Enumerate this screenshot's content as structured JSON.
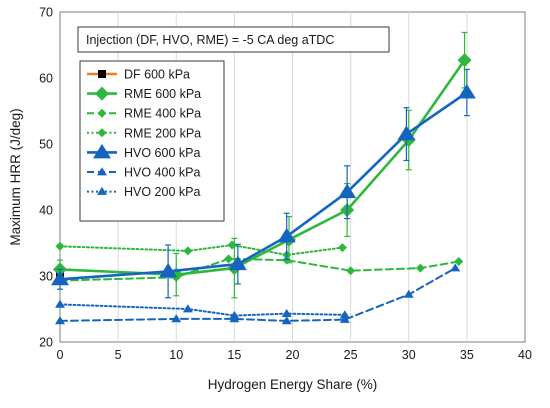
{
  "chart_data": {
    "type": "line",
    "title": "",
    "xlabel": "Hydrogen Energy Share (%)",
    "ylabel": "Maximum HRR  (J/deg)",
    "xlim": [
      0,
      40
    ],
    "ylim": [
      20,
      70
    ],
    "xticks": [
      0,
      5,
      10,
      15,
      20,
      25,
      30,
      35,
      40
    ],
    "yticks": [
      20,
      30,
      40,
      50,
      60,
      70
    ],
    "grid": "vertical",
    "legend_position": "upper-left",
    "annotation": "Injection (DF, HVO, RME) = -5 CA deg aTDC",
    "series": [
      {
        "name": "DF    600 kPa",
        "color": "#f07c1e",
        "line_style": "solid",
        "marker": "square",
        "marker_color": "#000000",
        "points": [
          {
            "x": 0,
            "y": 30.2,
            "err": 0.7
          }
        ]
      },
      {
        "name": "RME 600 kPa",
        "color": "#2db83d",
        "line_style": "solid",
        "marker": "diamond-large",
        "points": [
          {
            "x": 0,
            "y": 31.0,
            "err": 1.4
          },
          {
            "x": 10,
            "y": 30.2,
            "err": 3.2
          },
          {
            "x": 15,
            "y": 31.2,
            "err": 4.5
          },
          {
            "x": 19.7,
            "y": 35.5,
            "err": 3.5
          },
          {
            "x": 24.7,
            "y": 40.0,
            "err": 4.0
          },
          {
            "x": 30,
            "y": 50.6,
            "err": 4.5
          },
          {
            "x": 34.8,
            "y": 62.7,
            "err": 4.2
          }
        ]
      },
      {
        "name": "RME 400 kPa",
        "color": "#2db83d",
        "line_style": "dashed",
        "marker": "diamond-small",
        "points": [
          {
            "x": 0,
            "y": 29.3,
            "err": 0
          },
          {
            "x": 10,
            "y": 29.8,
            "err": 0
          },
          {
            "x": 14.5,
            "y": 32.6,
            "err": 0
          },
          {
            "x": 19.5,
            "y": 32.4,
            "err": 0
          },
          {
            "x": 25,
            "y": 30.8,
            "err": 0
          },
          {
            "x": 31,
            "y": 31.2,
            "err": 0
          },
          {
            "x": 34.3,
            "y": 32.2,
            "err": 0
          }
        ]
      },
      {
        "name": "RME 200 kPa",
        "color": "#2db83d",
        "line_style": "dotted",
        "marker": "diamond-small",
        "points": [
          {
            "x": 0,
            "y": 34.5,
            "err": 0
          },
          {
            "x": 11,
            "y": 33.8,
            "err": 0
          },
          {
            "x": 14.8,
            "y": 34.7,
            "err": 0
          },
          {
            "x": 19.5,
            "y": 33.2,
            "err": 0
          },
          {
            "x": 24.3,
            "y": 34.3,
            "err": 0
          }
        ]
      },
      {
        "name": "HVO 600 kPa",
        "color": "#1565c0",
        "line_style": "solid",
        "marker": "triangle-large",
        "points": [
          {
            "x": 0,
            "y": 29.5,
            "err": 1.5
          },
          {
            "x": 9.3,
            "y": 30.7,
            "err": 4.0
          },
          {
            "x": 15.3,
            "y": 31.8,
            "err": 3.0
          },
          {
            "x": 19.5,
            "y": 36.0,
            "err": 3.5
          },
          {
            "x": 24.7,
            "y": 42.7,
            "err": 4.0
          },
          {
            "x": 29.8,
            "y": 51.5,
            "err": 4.0
          },
          {
            "x": 35,
            "y": 57.8,
            "err": 3.5
          }
        ]
      },
      {
        "name": "HVO 400 kPa",
        "color": "#1565c0",
        "line_style": "dashed",
        "marker": "triangle-small",
        "points": [
          {
            "x": 0,
            "y": 23.2,
            "err": 0
          },
          {
            "x": 10,
            "y": 23.5,
            "err": 0
          },
          {
            "x": 15,
            "y": 23.5,
            "err": 0
          },
          {
            "x": 19.5,
            "y": 23.2,
            "err": 0
          },
          {
            "x": 24.5,
            "y": 23.4,
            "err": 0
          },
          {
            "x": 30,
            "y": 27.2,
            "err": 0
          },
          {
            "x": 34,
            "y": 31.2,
            "err": 0
          }
        ]
      },
      {
        "name": "HVO 200 kPa",
        "color": "#1565c0",
        "line_style": "dotted",
        "marker": "triangle-small",
        "points": [
          {
            "x": 0,
            "y": 25.7,
            "err": 0
          },
          {
            "x": 11,
            "y": 25.0,
            "err": 0
          },
          {
            "x": 15,
            "y": 24.0,
            "err": 0
          },
          {
            "x": 19.5,
            "y": 24.3,
            "err": 0
          },
          {
            "x": 24.5,
            "y": 24.1,
            "err": 0
          }
        ]
      }
    ]
  }
}
